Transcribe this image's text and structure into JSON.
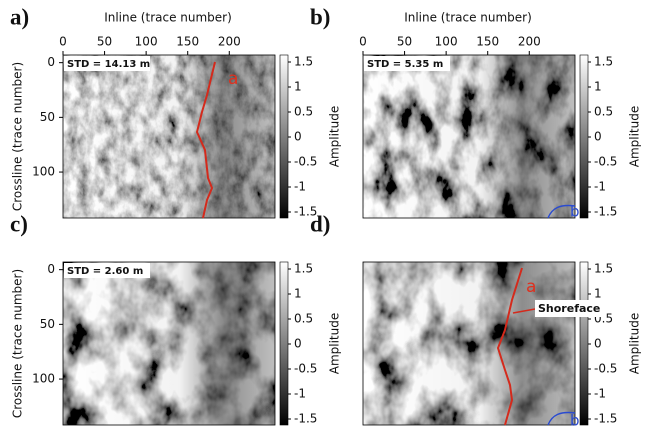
{
  "chart_data": [
    {
      "type": "heatmap",
      "label": "a)",
      "std_label": "STD = 14.13 m",
      "x_label": "Inline (trace number)",
      "xlim": [
        0,
        255
      ],
      "xticks": [
        0,
        50,
        100,
        150,
        200
      ],
      "y_label": "Crossline (trace number)",
      "ylim": [
        142,
        -7
      ],
      "yticks": [
        0,
        50,
        100
      ],
      "colorbar_label": "Amplitude",
      "clim": [
        -1.62,
        1.64
      ],
      "cticks": [
        1.5,
        1,
        0.5,
        0,
        -0.5,
        -1,
        -1.5
      ],
      "annotations": [
        "a"
      ]
    },
    {
      "type": "heatmap",
      "label": "b)",
      "std_label": "STD = 5.35 m",
      "x_label": "Inline (trace number)",
      "xlim": [
        0,
        255
      ],
      "xticks": [
        0,
        50,
        100,
        150,
        200
      ],
      "ylim": [
        142,
        -7
      ],
      "colorbar_label": "Amplitude",
      "clim": [
        -1.62,
        1.64
      ],
      "cticks": [
        1.5,
        1,
        0.5,
        0,
        -0.5,
        -1,
        -1.5
      ],
      "annotations": [
        "b"
      ]
    },
    {
      "type": "heatmap",
      "label": "c)",
      "std_label": "STD = 2.60 m",
      "xlim": [
        0,
        255
      ],
      "y_label": "Crossline (trace number)",
      "ylim": [
        142,
        -7
      ],
      "yticks": [
        0,
        50,
        100
      ],
      "colorbar_label": "Amplitude",
      "clim": [
        -1.62,
        1.64
      ],
      "cticks": [
        1.5,
        1,
        0.5,
        0,
        -0.5,
        -1,
        -1.5
      ]
    },
    {
      "type": "heatmap",
      "label": "d)",
      "xlim": [
        0,
        255
      ],
      "ylim": [
        142,
        -7
      ],
      "colorbar_label": "Amplitude",
      "clim": [
        -1.62,
        1.64
      ],
      "cticks": [
        1.5,
        1,
        0.5,
        0,
        -0.5,
        -1,
        -1.5
      ],
      "annotations": [
        "a",
        "b",
        "Shoreface"
      ]
    }
  ]
}
